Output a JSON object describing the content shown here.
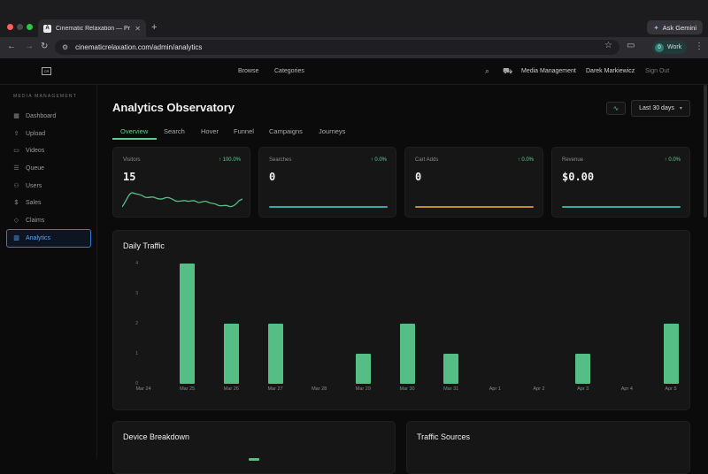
{
  "browser": {
    "tab_title": "Cinematic Relaxation — Prem",
    "tab_favicon": "A",
    "close": "✕",
    "new_tab": "+",
    "ask_gemini": "Ask Gemini",
    "url": "cinematicrelaxation.com/admin/analytics",
    "profile_initial": "0",
    "profile_label": "Work"
  },
  "header": {
    "logo": "CR",
    "nav": [
      "Browse",
      "Categories"
    ],
    "links": [
      "Media Management",
      "Darek Markiewicz",
      "Sign Out"
    ]
  },
  "sidebar": {
    "title": "MEDIA MANAGEMENT",
    "items": [
      {
        "label": "Dashboard",
        "icon": "grid-icon"
      },
      {
        "label": "Upload",
        "icon": "upload-icon"
      },
      {
        "label": "Videos",
        "icon": "video-icon"
      },
      {
        "label": "Queue",
        "icon": "queue-icon"
      },
      {
        "label": "Users",
        "icon": "users-icon"
      },
      {
        "label": "Sales",
        "icon": "dollar-icon"
      },
      {
        "label": "Claims",
        "icon": "shield-icon"
      },
      {
        "label": "Analytics",
        "icon": "chart-icon"
      }
    ],
    "active": "Analytics"
  },
  "main": {
    "title": "Analytics Observatory",
    "range": "Last 30 days",
    "tabs": [
      "Overview",
      "Search",
      "Hover",
      "Funnel",
      "Campaigns",
      "Journeys"
    ],
    "active_tab": "Overview",
    "kpis": [
      {
        "label": "Visitors",
        "delta": "↑ 100.0%",
        "value": "15",
        "line_color": "#54be84"
      },
      {
        "label": "Searches",
        "delta": "↑ 0.0%",
        "value": "0",
        "line_color": "#3aa7a3"
      },
      {
        "label": "Cart Adds",
        "delta": "↑ 0.0%",
        "value": "0",
        "line_color": "#c48a2c"
      },
      {
        "label": "Revenue",
        "delta": "↑ 0.0%",
        "value": "$0.00",
        "line_color": "#3aa7a3"
      }
    ],
    "daily_traffic_title": "Daily Traffic",
    "device_breakdown_title": "Device Breakdown",
    "traffic_sources_title": "Traffic Sources"
  },
  "chart_data": {
    "type": "bar",
    "title": "Daily Traffic",
    "categories": [
      "Mar 24",
      "Mar 25",
      "Mar 26",
      "Mar 27",
      "Mar 28",
      "Mar 29",
      "Mar 30",
      "Mar 31",
      "Apr 1",
      "Apr 2",
      "Apr 3",
      "Apr 4",
      "Apr 5"
    ],
    "values": [
      0,
      4,
      2,
      2,
      0,
      1,
      2,
      1,
      0,
      0,
      1,
      0,
      2
    ],
    "yticks": [
      0,
      1,
      2,
      3,
      4
    ],
    "ylim": [
      0,
      4
    ],
    "color": "#54be84"
  }
}
